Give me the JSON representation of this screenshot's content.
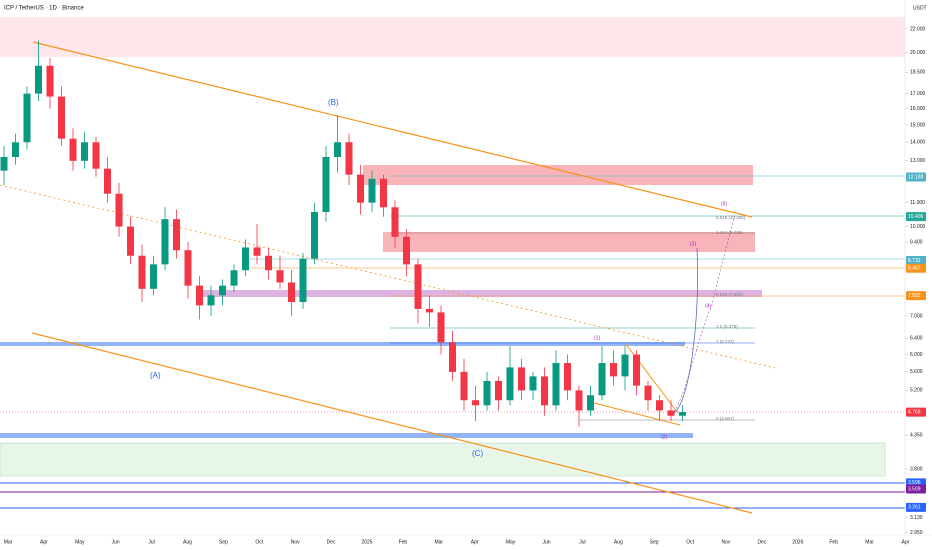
{
  "chart_data": {
    "type": "candlestick",
    "title": "ICP / TetherUS · 1D · Binance",
    "currency": "USDT",
    "log_scale": true,
    "ylim": [
      2.92,
      24.7
    ],
    "yticks": [
      {
        "value": 22,
        "label": "22.000"
      },
      {
        "value": 20,
        "label": "20.000"
      },
      {
        "value": 18.5,
        "label": "18.500"
      },
      {
        "value": 17,
        "label": "17.000"
      },
      {
        "value": 16,
        "label": "16.000"
      },
      {
        "value": 15,
        "label": "15.000"
      },
      {
        "value": 14,
        "label": "14.000"
      },
      {
        "value": 13,
        "label": "13.000"
      },
      {
        "value": 11,
        "label": "11.000"
      },
      {
        "value": 10,
        "label": "10.000"
      },
      {
        "value": 9.4,
        "label": "9.400"
      },
      {
        "value": 7,
        "label": "7.000"
      },
      {
        "value": 6.4,
        "label": "6.400"
      },
      {
        "value": 6,
        "label": "6.000"
      },
      {
        "value": 5.6,
        "label": "5.600"
      },
      {
        "value": 5.2,
        "label": "5.200"
      },
      {
        "value": 4.8,
        "label": "4.800"
      },
      {
        "value": 4.35,
        "label": "4.350"
      },
      {
        "value": 3.8,
        "label": "3.800"
      },
      {
        "value": 3.13,
        "label": "3.130"
      },
      {
        "value": 2.95,
        "label": "2.950"
      }
    ],
    "x_labels": [
      "Mar",
      "Apr",
      "May",
      "Jun",
      "Jul",
      "Aug",
      "Sep",
      "Oct",
      "Nov",
      "Dec",
      "2025",
      "Feb",
      "Mar",
      "Apr",
      "May",
      "Jun",
      "Jul",
      "Aug",
      "Sep",
      "Oct",
      "Nov",
      "Dec",
      "2026",
      "Feb",
      "Mar",
      "Apr"
    ],
    "up_color": "#089981",
    "down_color": "#f23645",
    "candles": [
      [
        12.5,
        13.8,
        11.8,
        13.2
      ],
      [
        13.2,
        14.5,
        12.8,
        14.0
      ],
      [
        14.0,
        17.5,
        13.6,
        17.0
      ],
      [
        17.0,
        21.0,
        16.5,
        19.0
      ],
      [
        19.0,
        19.6,
        16.0,
        16.8
      ],
      [
        16.8,
        17.5,
        13.8,
        14.2
      ],
      [
        14.2,
        14.8,
        12.5,
        13.0
      ],
      [
        13.0,
        14.6,
        12.6,
        14.0
      ],
      [
        14.0,
        14.3,
        12.2,
        12.6
      ],
      [
        12.6,
        13.2,
        11.0,
        11.4
      ],
      [
        11.4,
        11.9,
        9.6,
        10.0
      ],
      [
        10.0,
        10.4,
        8.6,
        8.9
      ],
      [
        8.9,
        9.3,
        7.4,
        7.8
      ],
      [
        7.8,
        8.9,
        7.6,
        8.6
      ],
      [
        8.6,
        10.8,
        8.4,
        10.3
      ],
      [
        10.3,
        10.7,
        8.8,
        9.1
      ],
      [
        9.1,
        9.4,
        7.5,
        7.9
      ],
      [
        7.9,
        8.2,
        6.9,
        7.3
      ],
      [
        7.3,
        7.9,
        7.0,
        7.6
      ],
      [
        7.6,
        8.1,
        7.3,
        7.9
      ],
      [
        7.9,
        8.6,
        7.7,
        8.4
      ],
      [
        8.4,
        9.5,
        8.2,
        9.2
      ],
      [
        9.2,
        10.1,
        8.6,
        8.9
      ],
      [
        8.9,
        9.2,
        8.1,
        8.4
      ],
      [
        8.4,
        8.9,
        7.8,
        8.0
      ],
      [
        8.0,
        8.4,
        7.0,
        7.4
      ],
      [
        7.4,
        9.0,
        7.2,
        8.8
      ],
      [
        8.8,
        11.0,
        8.6,
        10.6
      ],
      [
        10.6,
        13.8,
        10.2,
        13.2
      ],
      [
        13.2,
        15.6,
        12.4,
        14.0
      ],
      [
        14.0,
        14.5,
        11.8,
        12.3
      ],
      [
        12.3,
        12.8,
        10.5,
        11.0
      ],
      [
        11.0,
        12.5,
        10.6,
        12.1
      ],
      [
        12.1,
        12.3,
        10.4,
        10.8
      ],
      [
        10.8,
        11.1,
        9.2,
        9.6
      ],
      [
        9.6,
        9.9,
        8.2,
        8.6
      ],
      [
        8.6,
        8.8,
        6.8,
        7.2
      ],
      [
        7.2,
        7.6,
        6.7,
        7.1
      ],
      [
        7.1,
        7.3,
        6.0,
        6.3
      ],
      [
        6.3,
        6.6,
        5.4,
        5.6
      ],
      [
        5.6,
        5.9,
        4.8,
        5.0
      ],
      [
        5.0,
        5.3,
        4.6,
        4.9
      ],
      [
        4.9,
        5.6,
        4.8,
        5.4
      ],
      [
        5.4,
        5.5,
        4.8,
        5.0
      ],
      [
        5.0,
        6.2,
        4.9,
        5.7
      ],
      [
        5.7,
        5.9,
        5.0,
        5.2
      ],
      [
        5.2,
        5.6,
        5.0,
        5.5
      ],
      [
        5.5,
        5.7,
        4.7,
        4.9
      ],
      [
        4.9,
        6.1,
        4.8,
        5.8
      ],
      [
        5.8,
        6.0,
        5.0,
        5.2
      ],
      [
        5.2,
        5.3,
        4.5,
        4.8
      ],
      [
        4.8,
        5.3,
        4.7,
        5.1
      ],
      [
        5.1,
        6.2,
        5.0,
        5.8
      ],
      [
        5.8,
        6.1,
        5.3,
        5.5
      ],
      [
        5.5,
        6.2,
        5.2,
        6.0
      ],
      [
        6.0,
        6.1,
        5.1,
        5.3
      ],
      [
        5.3,
        5.4,
        4.8,
        5.0
      ],
      [
        5.0,
        5.1,
        4.6,
        4.8
      ],
      [
        4.8,
        5.0,
        4.6,
        4.7
      ],
      [
        4.7,
        4.9,
        4.6,
        4.769
      ]
    ],
    "price_tags": [
      {
        "value": 12.188,
        "color": "#4fb3c8"
      },
      {
        "value": 10.406,
        "color": "#26a69a"
      },
      {
        "value": 8.732,
        "color": "#4fb3c8"
      },
      {
        "value": 8.467,
        "color": "#f7931a"
      },
      {
        "value": 7.592,
        "color": "#f7931a"
      },
      {
        "value": 4.769,
        "color": "#f23645"
      },
      {
        "value": 3.596,
        "color": "#2962ff"
      },
      {
        "value": 3.509,
        "color": "#7b1fa2"
      },
      {
        "value": 3.261,
        "color": "#2962ff"
      }
    ],
    "annotations": [
      "(A)",
      "(B)",
      "(C)",
      "(1)",
      "(2)",
      "(3)",
      "(4)",
      "(5)",
      "0.618 (10.265)",
      "1.414 (9.028)",
      "0.618 (7.603)",
      "1.2 (6.478)",
      "1 (6.223)",
      "0 (4.602)"
    ]
  }
}
